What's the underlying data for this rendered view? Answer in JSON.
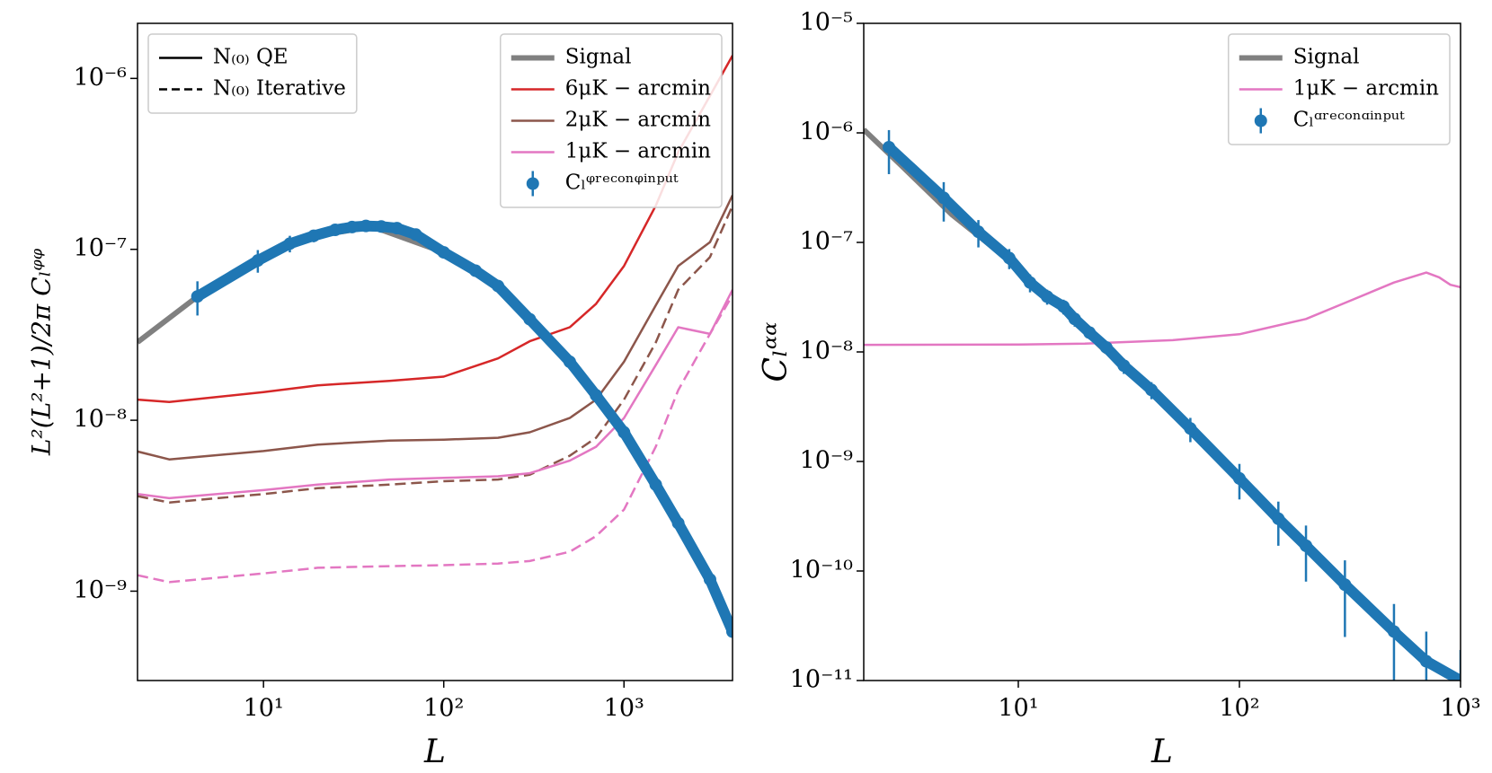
{
  "chart_data": [
    {
      "type": "line",
      "xlabel": "L",
      "ylabel": "L²(L²+1)/2π Cₗᵠᵠ",
      "log_x": true,
      "log_y": true,
      "xlim": [
        2,
        4000
      ],
      "ylim": [
        3e-10,
        2.1e-06
      ],
      "xticks": [
        {
          "value": 10,
          "label": "10¹"
        },
        {
          "value": 100,
          "label": "10²"
        },
        {
          "value": 1000,
          "label": "10³"
        }
      ],
      "yticks": [
        {
          "value": 1e-09,
          "label": "10⁻⁹"
        },
        {
          "value": 1e-08,
          "label": "10⁻⁸"
        },
        {
          "value": 1e-07,
          "label": "10⁻⁷"
        },
        {
          "value": 1e-06,
          "label": "10⁻⁶"
        }
      ],
      "legend": "upper right",
      "style_legend_corner": "upper left",
      "style_legend": [
        {
          "name": "N₍₀₎ QE",
          "dashed": false
        },
        {
          "name": "N₍₀₎ Iterative",
          "dashed": true
        }
      ],
      "series": [
        {
          "name": "Signal",
          "kind": "line",
          "color": "#808080",
          "width": 6,
          "dashed": false,
          "x": [
            2,
            4.3,
            10,
            20,
            40,
            100,
            200,
            300,
            500,
            700,
            1000,
            1500,
            2000,
            3000,
            4000
          ],
          "values": [
            2.86e-08,
            5.3e-08,
            9.3e-08,
            1.2e-07,
            1.36e-07,
            9.6e-08,
            6.1e-08,
            3.9e-08,
            2.2e-08,
            1.4e-08,
            8.5e-09,
            4.2e-09,
            2.5e-09,
            1.17e-09,
            5.8e-10
          ]
        },
        {
          "name": "6μK − arcmin",
          "kind": "line",
          "color": "#d62728",
          "width": 2.5,
          "dashed": false,
          "x": [
            2,
            3,
            10,
            20,
            50,
            100,
            200,
            300,
            500,
            700,
            1000,
            1500,
            2000,
            3000,
            4000
          ],
          "values": [
            1.32e-08,
            1.28e-08,
            1.46e-08,
            1.6e-08,
            1.7e-08,
            1.8e-08,
            2.3e-08,
            2.9e-08,
            3.5e-08,
            4.8e-08,
            8e-08,
            1.8e-07,
            3.7e-07,
            7.9e-07,
            1.36e-06
          ]
        },
        {
          "name": "2μK − arcmin",
          "kind": "line",
          "color": "#8c564b",
          "width": 2.5,
          "dashed": false,
          "x": [
            2,
            3,
            10,
            20,
            50,
            100,
            200,
            300,
            500,
            700,
            1000,
            1500,
            2000,
            3000,
            4000
          ],
          "values": [
            6.56e-09,
            5.9e-09,
            6.6e-09,
            7.2e-09,
            7.6e-09,
            7.7e-09,
            7.9e-09,
            8.5e-09,
            1.03e-08,
            1.32e-08,
            2.2e-08,
            4.7e-08,
            8e-08,
            1.1e-07,
            2.07e-07
          ]
        },
        {
          "kind": "line",
          "color": "#8c564b",
          "width": 2.5,
          "dashed": true,
          "x": [
            2,
            3,
            10,
            20,
            50,
            100,
            200,
            300,
            500,
            700,
            1000,
            1500,
            2000,
            3000,
            4000
          ],
          "values": [
            3.6e-09,
            3.3e-09,
            3.7e-09,
            4e-09,
            4.2e-09,
            4.4e-09,
            4.5e-09,
            4.8e-09,
            6.2e-09,
            7.9e-09,
            1.32e-08,
            2.85e-08,
            5.8e-08,
            9e-08,
            1.8e-07
          ]
        },
        {
          "name": "1μK − arcmin",
          "kind": "line",
          "color": "#e377c2",
          "width": 2.5,
          "dashed": false,
          "x": [
            2,
            3,
            10,
            20,
            50,
            100,
            200,
            300,
            500,
            700,
            1000,
            1500,
            2000,
            3000,
            4000
          ],
          "values": [
            3.7e-09,
            3.5e-09,
            3.9e-09,
            4.2e-09,
            4.5e-09,
            4.6e-09,
            4.7e-09,
            4.9e-09,
            5.8e-09,
            7e-09,
            1.03e-08,
            2.1e-08,
            3.5e-08,
            3.2e-08,
            5.8e-08
          ]
        },
        {
          "kind": "line",
          "color": "#e377c2",
          "width": 2.5,
          "dashed": true,
          "x": [
            2,
            3,
            10,
            20,
            50,
            100,
            200,
            300,
            500,
            700,
            1000,
            1500,
            2000,
            3000,
            4000
          ],
          "values": [
            1.24e-09,
            1.13e-09,
            1.27e-09,
            1.37e-09,
            1.4e-09,
            1.42e-09,
            1.45e-09,
            1.5e-09,
            1.7e-09,
            2.1e-09,
            3e-09,
            7e-09,
            1.5e-08,
            3.2e-08,
            5.4e-08
          ]
        },
        {
          "name": "Cₗᵠʳᵉᶜᵒⁿᵠⁱⁿᵖᵘᵗ",
          "kind": "errorbar",
          "color": "#1f77b4",
          "connect": true,
          "x": [
            4.3,
            9.3,
            14,
            19,
            25,
            31,
            37,
            45,
            55,
            70,
            100,
            150,
            200,
            300,
            500,
            700,
            1000,
            1500,
            2000,
            3000,
            4000
          ],
          "values": [
            5.3e-08,
            8.6e-08,
            1.08e-07,
            1.2e-07,
            1.3e-07,
            1.35e-07,
            1.37e-07,
            1.36e-07,
            1.33e-07,
            1.22e-07,
            9.6e-08,
            7.5e-08,
            6.1e-08,
            3.9e-08,
            2.2e-08,
            1.4e-08,
            8.5e-09,
            4.2e-09,
            2.5e-09,
            1.17e-09,
            5.8e-10
          ],
          "errors": [
            1.2e-08,
            1.3e-08,
            1.2e-08,
            1e-08,
            8e-09,
            7e-09,
            6e-09,
            5e-09,
            4e-09,
            3e-09,
            2e-09,
            1.5e-09,
            1.2e-09,
            8e-10,
            5e-10,
            3e-10,
            2e-10,
            1e-10,
            6e-11,
            3e-11,
            2e-11
          ]
        }
      ]
    },
    {
      "type": "line",
      "xlabel": "L",
      "ylabel": "Cₗᵅᵅ",
      "log_x": true,
      "log_y": true,
      "xlim": [
        2,
        1000
      ],
      "ylim": [
        1e-11,
        1e-05
      ],
      "xticks": [
        {
          "value": 10,
          "label": "10¹"
        },
        {
          "value": 100,
          "label": "10²"
        },
        {
          "value": 1000,
          "label": "10³"
        }
      ],
      "yticks": [
        {
          "value": 1e-11,
          "label": "10⁻¹¹"
        },
        {
          "value": 1e-10,
          "label": "10⁻¹⁰"
        },
        {
          "value": 1e-09,
          "label": "10⁻⁹"
        },
        {
          "value": 1e-08,
          "label": "10⁻⁸"
        },
        {
          "value": 1e-07,
          "label": "10⁻⁷"
        },
        {
          "value": 1e-06,
          "label": "10⁻⁶"
        },
        {
          "value": 1e-05,
          "label": "10⁻⁵"
        }
      ],
      "legend": "upper right",
      "series": [
        {
          "name": "Signal",
          "kind": "line",
          "color": "#808080",
          "width": 6,
          "dashed": false,
          "x": [
            2,
            3,
            5,
            10,
            15,
            25
          ],
          "values": [
            1.07e-06,
            4.9e-07,
            1.8e-07,
            5.9e-08,
            2.7e-08,
            1e-08
          ]
        },
        {
          "name": "1μK − arcmin",
          "kind": "line",
          "color": "#e377c2",
          "width": 2.5,
          "dashed": false,
          "x": [
            2,
            10,
            20,
            50,
            100,
            200,
            300,
            500,
            700,
            800,
            900,
            1000
          ],
          "values": [
            1.16e-08,
            1.17e-08,
            1.19e-08,
            1.28e-08,
            1.45e-08,
            2e-08,
            2.8e-08,
            4.3e-08,
            5.3e-08,
            4.8e-08,
            4.1e-08,
            3.9e-08
          ]
        },
        {
          "name": "Cₗᵅʳᵉᶜᵒⁿᵅⁱⁿᵖᵘᵗ",
          "kind": "errorbar",
          "color": "#1f77b4",
          "connect": true,
          "x": [
            2.6,
            4.6,
            6.6,
            9.1,
            11.3,
            13.5,
            16,
            18,
            21,
            25,
            30,
            40,
            60,
            100,
            150,
            200,
            300,
            500,
            700,
            1000
          ],
          "values": [
            7.4e-07,
            2.55e-07,
            1.25e-07,
            7.2e-08,
            4.3e-08,
            3.2e-08,
            2.6e-08,
            2e-08,
            1.5e-08,
            1.1e-08,
            7.5e-09,
            4.5e-09,
            2e-09,
            7e-10,
            3e-10,
            1.7e-10,
            7.5e-11,
            2.8e-11,
            1.5e-11,
            1e-11
          ],
          "errors": [
            3.2e-07,
            1e-07,
            3.5e-08,
            1.5e-08,
            8e-09,
            5e-09,
            4e-09,
            3e-09,
            2e-09,
            1.5e-09,
            1.2e-09,
            8e-10,
            5e-10,
            2.5e-10,
            1.3e-10,
            9e-11,
            5e-11,
            2.2e-11,
            1.3e-11,
            9e-12
          ]
        }
      ]
    }
  ]
}
